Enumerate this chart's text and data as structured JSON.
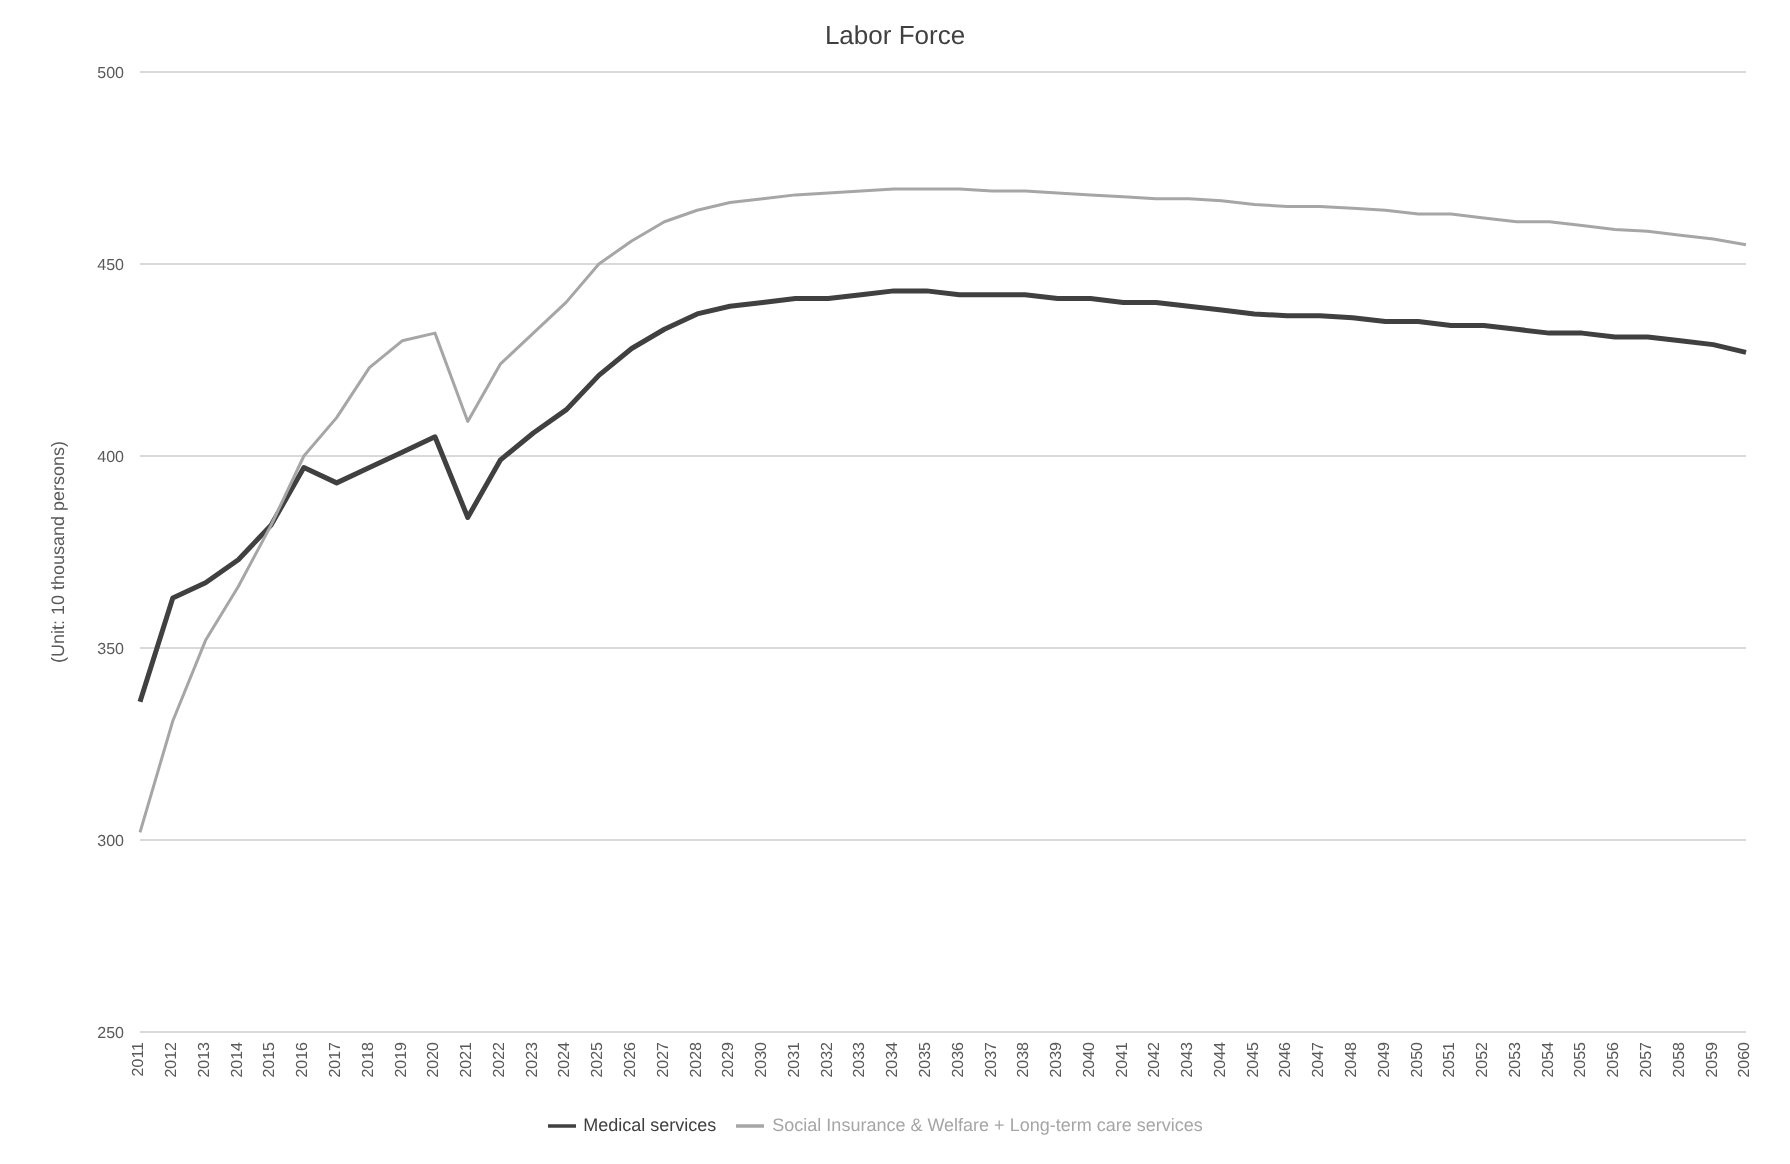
{
  "chart_data": {
    "type": "line",
    "title": "Labor Force",
    "ylabel": "(Unit: 10 thousand persons)",
    "categories": [
      "2011",
      "2012",
      "2013",
      "2014",
      "2015",
      "2016",
      "2017",
      "2018",
      "2019",
      "2020",
      "2021",
      "2022",
      "2023",
      "2024",
      "2025",
      "2026",
      "2027",
      "2028",
      "2029",
      "2030",
      "2031",
      "2032",
      "2033",
      "2034",
      "2035",
      "2036",
      "2037",
      "2038",
      "2039",
      "2040",
      "2041",
      "2042",
      "2043",
      "2044",
      "2045",
      "2046",
      "2047",
      "2048",
      "2049",
      "2050",
      "2051",
      "2052",
      "2053",
      "2054",
      "2055",
      "2056",
      "2057",
      "2058",
      "2059",
      "2060"
    ],
    "series": [
      {
        "name": "Medical services",
        "color": "#404040",
        "values": [
          336,
          363,
          367,
          373,
          382,
          397,
          393,
          397,
          401,
          405,
          384,
          399,
          406,
          412,
          421,
          428,
          433,
          437,
          439,
          440,
          441,
          441,
          442,
          443,
          443,
          442,
          442,
          442,
          441,
          441,
          440,
          440,
          439,
          438,
          437,
          436.5,
          436.5,
          436,
          435,
          435,
          434,
          434,
          433,
          432,
          432,
          431,
          431,
          430,
          429,
          427
        ]
      },
      {
        "name": "Social Insurance & Welfare + Long-term care services",
        "color": "#a6a6a6",
        "values": [
          302,
          331,
          352,
          366,
          382,
          400,
          410,
          423,
          430,
          432,
          409,
          424,
          432,
          440,
          450,
          456,
          461,
          464,
          466,
          467,
          468,
          468.5,
          469,
          469.5,
          469.5,
          469.5,
          469,
          469,
          468.5,
          468,
          467.5,
          467,
          467,
          466.5,
          465.5,
          465,
          465,
          464.5,
          464,
          463,
          463,
          462,
          461,
          461,
          460,
          459,
          458.5,
          457.5,
          456.5,
          455
        ]
      }
    ],
    "ylim": [
      250,
      500
    ],
    "yticks": [
      250,
      300,
      350,
      400,
      450,
      500
    ],
    "grid": "y",
    "legend": "bottom",
    "marker": "none",
    "line_style": "solid"
  }
}
